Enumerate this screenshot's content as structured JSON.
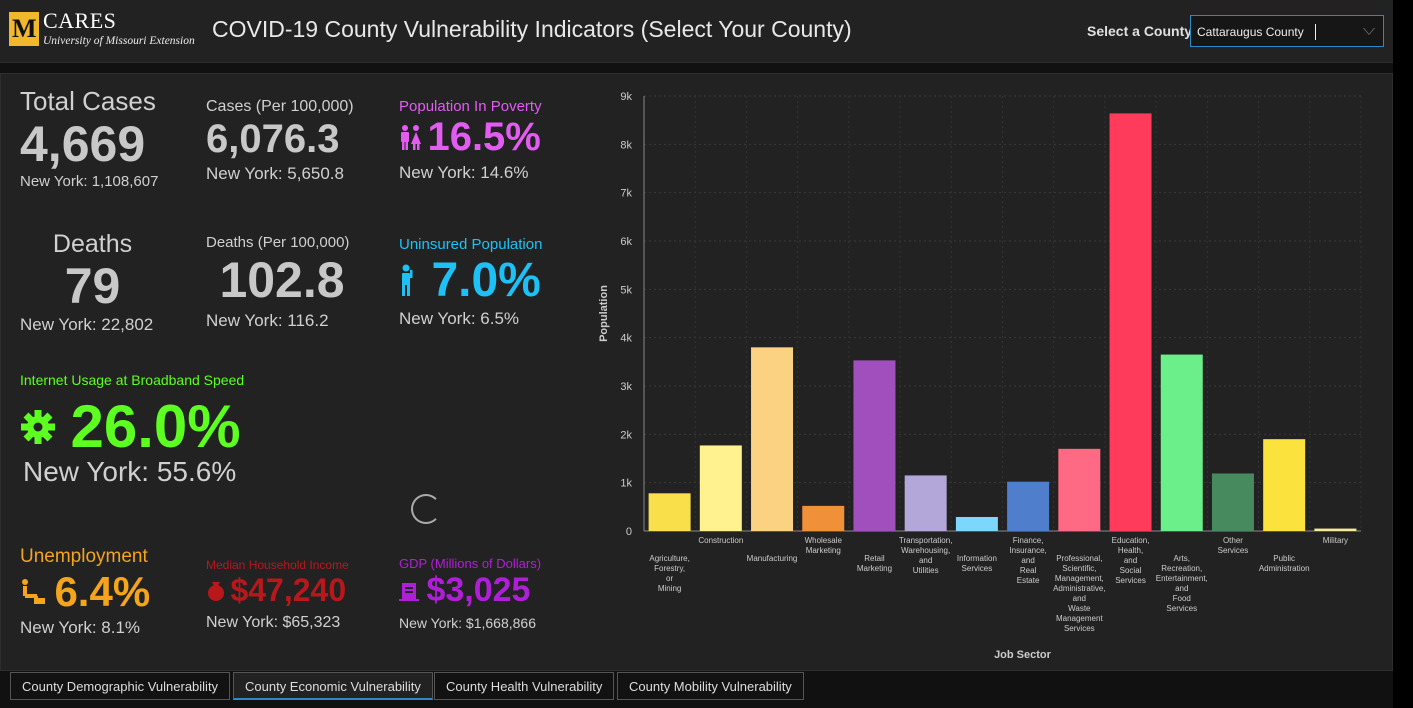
{
  "header": {
    "logo_letter": "M",
    "brand": "CARES",
    "brand_sub": "University of Missouri Extension",
    "title": "COVID-19 County Vulnerability Indicators (Select Your County)",
    "select_label": "Select a County",
    "select_value": "Cattaraugus County"
  },
  "stats": {
    "total_cases": {
      "label": "Total Cases",
      "value": "4,669",
      "compare": "New York: 1,108,607"
    },
    "cases_per": {
      "label": "Cases (Per 100,000)",
      "value": "6,076.3",
      "compare": "New York: 5,650.8"
    },
    "poverty": {
      "label": "Population In Poverty",
      "value": "16.5%",
      "compare": "New York: 14.6%",
      "color": "#e25cf2"
    },
    "deaths": {
      "label": "Deaths",
      "value": "79",
      "compare": "New York: 22,802"
    },
    "deaths_per": {
      "label": "Deaths (Per 100,000)",
      "value": "102.8",
      "compare": "New York: 116.2"
    },
    "uninsured": {
      "label": "Uninsured Population",
      "value": "7.0%",
      "compare": "New York: 6.5%",
      "color": "#1ec1f5"
    },
    "internet": {
      "label": "Internet Usage at Broadband Speed",
      "value": "26.0%",
      "compare": "New York: 55.6%",
      "color": "#5dff20"
    },
    "unemployment": {
      "label": "Unemployment",
      "value": "6.4%",
      "compare": "New York: 8.1%",
      "color": "#f4a51c"
    },
    "income": {
      "label": "Median Household Income",
      "value": "$47,240",
      "compare": "New York: $65,323",
      "color": "#b8181c"
    },
    "gdp": {
      "label": "GDP (Millions of Dollars)",
      "value": "$3,025",
      "compare": "New York: $1,668,866",
      "color": "#b01fd8"
    }
  },
  "chart_data": {
    "type": "bar",
    "xlabel": "Job Sector",
    "ylabel": "Population",
    "ylim": [
      0,
      9000
    ],
    "ytick_labels": [
      "0",
      "1k",
      "2k",
      "3k",
      "4k",
      "5k",
      "6k",
      "7k",
      "8k",
      "9k"
    ],
    "grid": true,
    "categories": [
      [
        "Agriculture,",
        "Forestry,",
        "or",
        "Mining"
      ],
      [
        "Construction"
      ],
      [
        "Manufacturing"
      ],
      [
        "Wholesale",
        "Marketing"
      ],
      [
        "Retail",
        "Marketing"
      ],
      [
        "Transportation,",
        "Warehousing,",
        "and",
        "Utilities"
      ],
      [
        "Information",
        "Services"
      ],
      [
        "Finance,",
        "Insurance,",
        "and",
        "Real",
        "Estate"
      ],
      [
        "Professional,",
        "Scientific,",
        "Management,",
        "Administrative,",
        "and",
        "Waste",
        "Management",
        "Services"
      ],
      [
        "Education,",
        "Health,",
        "and",
        "Social",
        "Services"
      ],
      [
        "Arts,",
        "Recreation,",
        "Entertainment,",
        "and",
        "Food",
        "Services"
      ],
      [
        "Other",
        "Services"
      ],
      [
        "Public",
        "Administration"
      ],
      [
        "Military"
      ]
    ],
    "values": [
      780,
      1770,
      3800,
      520,
      3530,
      1150,
      290,
      1020,
      1700,
      8640,
      3650,
      1190,
      1900,
      50
    ],
    "colors": [
      "#f9e04b",
      "#fff28f",
      "#fad282",
      "#f0913a",
      "#a24fbe",
      "#b3a6d8",
      "#7dd6fb",
      "#4f7fcc",
      "#fe6a83",
      "#fe3b5b",
      "#6bef8a",
      "#468a5e",
      "#fbe23c",
      "#f7eb9b"
    ]
  },
  "tabs": [
    {
      "label": "County Demographic Vulnerability",
      "active": false
    },
    {
      "label": "County Economic Vulnerability",
      "active": true
    },
    {
      "label": "County Health Vulnerability",
      "active": false
    },
    {
      "label": "County Mobility Vulnerability",
      "active": false
    }
  ]
}
